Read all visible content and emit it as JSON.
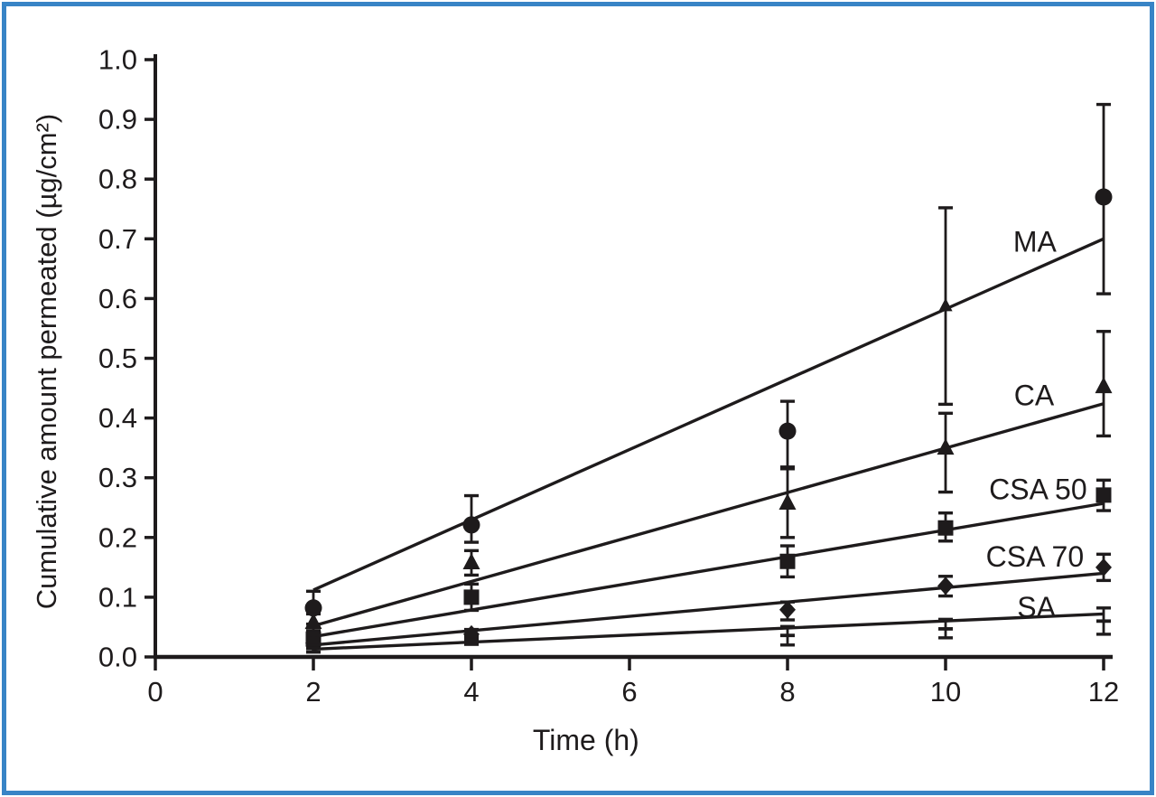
{
  "figure": {
    "border_color": "#3884c6",
    "background_color": "#ffffff",
    "ink_color": "#1e1b1c"
  },
  "chart_data": {
    "type": "scatter",
    "title": "",
    "xlabel": "Time (h)",
    "ylabel": "Cumulative amount permeated (µg/cm²)",
    "xlim": [
      0,
      12
    ],
    "ylim": [
      0.0,
      1.0
    ],
    "xticks": [
      0,
      2,
      4,
      6,
      8,
      10,
      12
    ],
    "xtick_labels": [
      "0",
      "2",
      "4",
      "6",
      "8",
      "10",
      "12"
    ],
    "yticks": [
      0.0,
      0.1,
      0.2,
      0.3,
      0.4,
      0.5,
      0.6,
      0.7,
      0.8,
      0.9,
      1.0
    ],
    "ytick_labels": [
      "0.0",
      "0.1",
      "0.2",
      "0.3",
      "0.4",
      "0.5",
      "0.6",
      "0.7",
      "0.8",
      "0.9",
      "1.0"
    ],
    "grid": false,
    "legend_position": "inline-right-labels",
    "error_bars": true,
    "series": [
      {
        "name": "MA",
        "marker": "circle",
        "label": "MA",
        "label_pos": {
          "x": 11.13,
          "y": 0.695
        },
        "trend": {
          "x1": 2,
          "y1": 0.112,
          "x2": 12,
          "y2": 0.7
        },
        "points": [
          {
            "x": 2,
            "y": 0.082,
            "lo": 0.055,
            "hi": 0.11
          },
          {
            "x": 4,
            "y": 0.221,
            "lo": 0.192,
            "hi": 0.27
          },
          {
            "x": 8,
            "y": 0.378,
            "lo": 0.318,
            "hi": 0.428
          },
          {
            "x": 10,
            "y": 0.588,
            "lo": 0.423,
            "hi": 0.752,
            "marker": "triangle",
            "size": 0.8
          },
          {
            "x": 12,
            "y": 0.77,
            "lo": 0.608,
            "hi": 0.925
          }
        ]
      },
      {
        "name": "CA",
        "marker": "triangle",
        "label": "CA",
        "label_pos": {
          "x": 11.12,
          "y": 0.438
        },
        "trend": {
          "x1": 2,
          "y1": 0.052,
          "x2": 12,
          "y2": 0.424
        },
        "points": [
          {
            "x": 2,
            "y": 0.058,
            "lo": 0.044,
            "hi": 0.072
          },
          {
            "x": 4,
            "y": 0.158,
            "lo": 0.137,
            "hi": 0.178
          },
          {
            "x": 8,
            "y": 0.258,
            "lo": 0.2,
            "hi": 0.315
          },
          {
            "x": 10,
            "y": 0.35,
            "lo": 0.276,
            "hi": 0.408
          },
          {
            "x": 12,
            "y": 0.453,
            "lo": 0.37,
            "hi": 0.545
          }
        ]
      },
      {
        "name": "CSA 50",
        "marker": "square",
        "label": "CSA 50",
        "label_pos": {
          "x": 11.17,
          "y": 0.281
        },
        "trend": {
          "x1": 2,
          "y1": 0.034,
          "x2": 12,
          "y2": 0.257
        },
        "points": [
          {
            "x": 2,
            "y": 0.03,
            "lo": 0.02,
            "hi": 0.04
          },
          {
            "x": 4,
            "y": 0.1,
            "lo": 0.078,
            "hi": 0.122
          },
          {
            "x": 8,
            "y": 0.16,
            "lo": 0.134,
            "hi": 0.186
          },
          {
            "x": 10,
            "y": 0.216,
            "lo": 0.194,
            "hi": 0.241
          },
          {
            "x": 12,
            "y": 0.271,
            "lo": 0.245,
            "hi": 0.296
          }
        ]
      },
      {
        "name": "CSA 70",
        "marker": "diamond",
        "label": "CSA 70",
        "label_pos": {
          "x": 11.13,
          "y": 0.168
        },
        "trend": {
          "x1": 2,
          "y1": 0.02,
          "x2": 12,
          "y2": 0.14
        },
        "points": [
          {
            "x": 2,
            "y": 0.023,
            "lo": 0.015,
            "hi": 0.031
          },
          {
            "x": 4,
            "y": 0.038,
            "lo": 0.03,
            "hi": 0.046
          },
          {
            "x": 8,
            "y": 0.079,
            "lo": 0.062,
            "hi": 0.092
          },
          {
            "x": 10,
            "y": 0.119,
            "lo": 0.102,
            "hi": 0.135
          },
          {
            "x": 12,
            "y": 0.15,
            "lo": 0.128,
            "hi": 0.172
          }
        ]
      },
      {
        "name": "SA",
        "marker": "dash",
        "label": "SA",
        "label_pos": {
          "x": 11.15,
          "y": 0.083
        },
        "trend": {
          "x1": 2,
          "y1": 0.013,
          "x2": 12,
          "y2": 0.072
        },
        "points": [
          {
            "x": 2,
            "y": 0.014,
            "lo": 0.008,
            "hi": 0.02
          },
          {
            "x": 4,
            "y": 0.028,
            "lo": 0.021,
            "hi": 0.035
          },
          {
            "x": 8,
            "y": 0.036,
            "lo": 0.02,
            "hi": 0.051
          },
          {
            "x": 10,
            "y": 0.047,
            "lo": 0.032,
            "hi": 0.063
          },
          {
            "x": 12,
            "y": 0.06,
            "lo": 0.038,
            "hi": 0.082
          }
        ]
      }
    ]
  }
}
